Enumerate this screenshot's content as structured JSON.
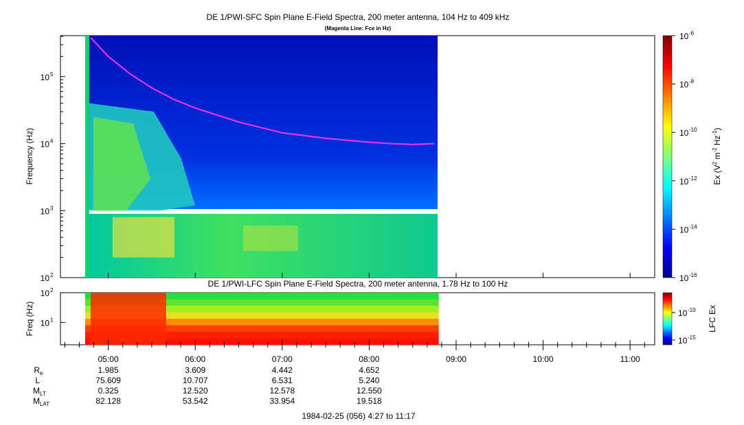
{
  "chart_data": [
    {
      "type": "heatmap",
      "title": "DE 1/PWI-SFC  Spin Plane E-Field Spectra, 200 meter antenna, 104 Hz to 409 kHz",
      "subtitle": "(Magenta Line: Fce in Hz)",
      "ylabel": "Frequency (Hz)",
      "y_scale": "log",
      "ylim": [
        100,
        409000
      ],
      "y_ticks": [
        {
          "value": 100,
          "base": "10",
          "exp": "2"
        },
        {
          "value": 1000,
          "base": "10",
          "exp": "3"
        },
        {
          "value": 10000,
          "base": "10",
          "exp": "4"
        },
        {
          "value": 100000,
          "base": "10",
          "exp": "5"
        }
      ],
      "x_range": [
        "04:27",
        "11:17"
      ],
      "data_time_range": [
        "04:44",
        "08:48"
      ],
      "colorbar": {
        "label_parts": {
          "pre": "Ex (V",
          "sup1": "2",
          "mid": " m",
          "sup2": "-2",
          "mid2": " Hz",
          "sup3": "-1",
          "post": ")"
        },
        "scale": "log",
        "range": [
          1e-16,
          1e-06
        ],
        "ticks": [
          {
            "value": 1e-06,
            "base": "10",
            "exp": "-6"
          },
          {
            "value": 1e-08,
            "base": "10",
            "exp": "-8"
          },
          {
            "value": 1e-10,
            "base": "10",
            "exp": "-10"
          },
          {
            "value": 1e-12,
            "base": "10",
            "exp": "-12"
          },
          {
            "value": 1e-14,
            "base": "10",
            "exp": "-14"
          },
          {
            "value": 1e-16,
            "base": "10",
            "exp": "-16"
          }
        ]
      },
      "series": [
        {
          "name": "Fce",
          "color": "#ff33ff",
          "x": [
            "04:48",
            "05:00",
            "05:15",
            "05:30",
            "05:45",
            "06:00",
            "06:30",
            "07:00",
            "07:30",
            "08:00",
            "08:15",
            "08:30",
            "08:45"
          ],
          "y": [
            380000,
            200000,
            110000,
            68000,
            46000,
            34000,
            21000,
            14500,
            12000,
            10500,
            10000,
            9700,
            10000
          ]
        }
      ]
    },
    {
      "type": "heatmap",
      "title": "DE 1/PWI-LFC  Spin Plane E-Field Spectra, 200 meter antenna, 1.78 Hz to 100 Hz",
      "ylabel": "Freq (Hz)",
      "y_scale": "log",
      "ylim": [
        1.78,
        100
      ],
      "y_ticks": [
        {
          "value": 10,
          "base": "10",
          "exp": "1"
        },
        {
          "value": 100,
          "base": "10",
          "exp": "2"
        }
      ],
      "colorbar": {
        "label": "LFC Ex",
        "scale": "log",
        "ticks": [
          {
            "value": 1e-10,
            "base": "10",
            "exp": "-10"
          },
          {
            "value": 1e-15,
            "base": "10",
            "exp": "-15"
          }
        ]
      }
    }
  ],
  "x_axis": {
    "ticks": [
      "05:00",
      "06:00",
      "07:00",
      "08:00",
      "09:00",
      "10:00",
      "11:00"
    ],
    "tick_minutes": [
      300,
      360,
      420,
      480,
      540,
      600,
      660
    ],
    "range_minutes": [
      267,
      677
    ]
  },
  "ephemeris": [
    {
      "label": "R",
      "sub": "e",
      "values": [
        "1.985",
        "3.609",
        "4.442",
        "4.652"
      ]
    },
    {
      "label": "L",
      "sub": "",
      "values": [
        "75.609",
        "10.707",
        "6.531",
        "5.240"
      ]
    },
    {
      "label": "M",
      "sub": "LT",
      "values": [
        "0.325",
        "12.520",
        "12.578",
        "12.550"
      ]
    },
    {
      "label": "M",
      "sub": "LAT",
      "values": [
        "82.128",
        "53.542",
        "33.954",
        "19.518"
      ]
    }
  ],
  "footer": "1984-02-25 (056) 4:27 to 11:17",
  "colors": {
    "fce_line": "#ff33ff",
    "background": "#ffffff"
  }
}
